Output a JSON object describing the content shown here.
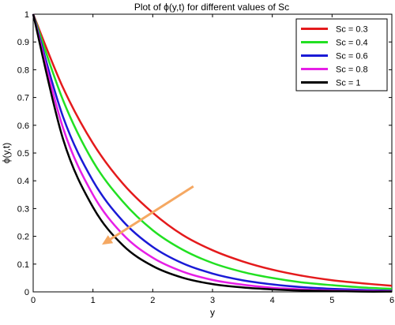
{
  "chart_data": {
    "type": "line",
    "title": "Plot of ϕ(y,t) for different values of Sc",
    "xlabel": "y",
    "ylabel": "ϕ(y,t)",
    "xlim": [
      0,
      6
    ],
    "ylim": [
      0,
      1
    ],
    "xticks": [
      0,
      1,
      2,
      3,
      4,
      5,
      6
    ],
    "yticks": [
      0,
      0.1,
      0.2,
      0.3,
      0.4,
      0.5,
      0.6,
      0.7,
      0.8,
      0.9,
      1
    ],
    "xtick_labels": [
      "0",
      "1",
      "2",
      "3",
      "4",
      "5",
      "6"
    ],
    "ytick_labels": [
      "0",
      "0.1",
      "0.2",
      "0.3",
      "0.4",
      "0.5",
      "0.6",
      "0.7",
      "0.8",
      "0.9",
      "1"
    ],
    "grid": false,
    "legend_position": "top-right",
    "x": [
      0,
      0.5,
      1,
      1.5,
      2,
      2.5,
      3,
      3.5,
      4,
      4.5,
      5,
      5.5,
      6
    ],
    "series": [
      {
        "name": "Sc = 0.3",
        "color": "#e41a1c",
        "values": [
          1.0,
          0.735,
          0.535,
          0.39,
          0.285,
          0.205,
          0.15,
          0.11,
          0.08,
          0.058,
          0.042,
          0.031,
          0.022
        ]
      },
      {
        "name": "Sc = 0.4",
        "color": "#22e022",
        "values": [
          1.0,
          0.69,
          0.47,
          0.325,
          0.222,
          0.152,
          0.104,
          0.072,
          0.05,
          0.034,
          0.024,
          0.016,
          0.011
        ]
      },
      {
        "name": "Sc = 0.6",
        "color": "#1a1ad6",
        "values": [
          1.0,
          0.63,
          0.4,
          0.255,
          0.162,
          0.103,
          0.066,
          0.042,
          0.027,
          0.017,
          0.011,
          0.007,
          0.004
        ]
      },
      {
        "name": "Sc = 0.8",
        "color": "#e61ee6",
        "values": [
          1.0,
          0.59,
          0.35,
          0.207,
          0.123,
          0.073,
          0.043,
          0.026,
          0.015,
          0.009,
          0.005,
          0.003,
          0.002
        ]
      },
      {
        "name": "Sc = 1",
        "color": "#000000",
        "values": [
          1.0,
          0.55,
          0.305,
          0.168,
          0.093,
          0.051,
          0.028,
          0.016,
          0.009,
          0.005,
          0.003,
          0.001,
          0.001
        ]
      }
    ],
    "annotations": [
      {
        "type": "arrow",
        "color": "#f5a862",
        "from": [
          2.68,
          0.38
        ],
        "to": [
          1.15,
          0.17
        ]
      }
    ]
  }
}
